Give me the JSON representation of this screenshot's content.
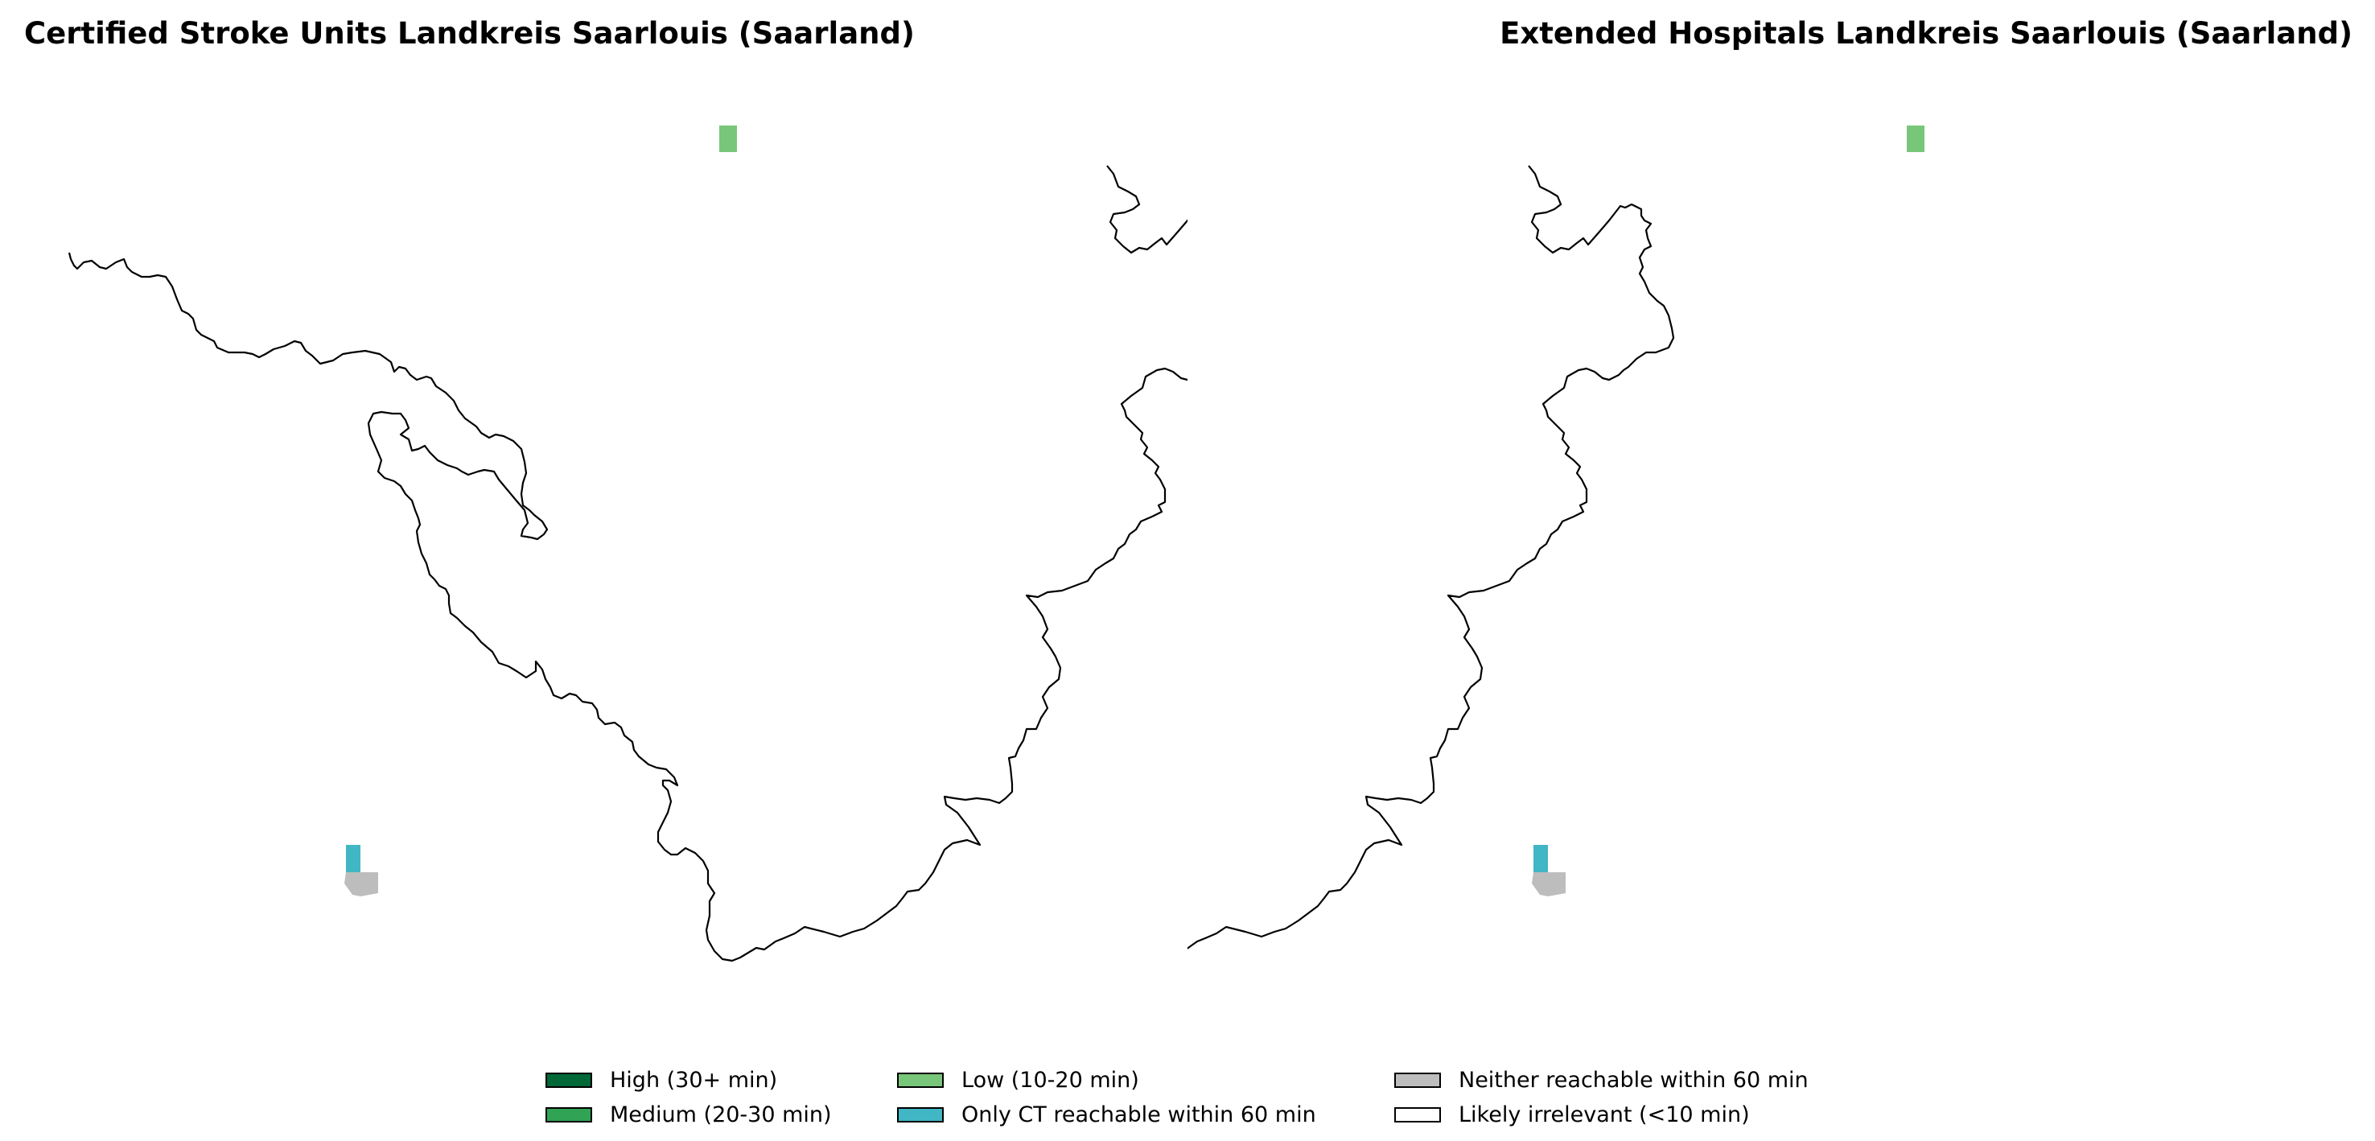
{
  "colors": {
    "high": "#006837",
    "medium": "#31a354",
    "low": "#78c679",
    "ct_only": "#41b6c4",
    "neither": "#bdbdbd",
    "irrelevant": "#ffffff",
    "boundary": "#000000"
  },
  "maps": [
    {
      "title": "Certified Stroke Units Landkreis Saarlouis (Saarland)",
      "filled_cells": [
        {
          "category": "low",
          "location": "northern tip"
        },
        {
          "category": "ct_only",
          "location": "southern tip"
        },
        {
          "category": "neither",
          "location": "southern tip"
        }
      ]
    },
    {
      "title": "Extended Hospitals Landkreis Saarlouis (Saarland)",
      "filled_cells": [
        {
          "category": "low",
          "location": "northern tip"
        },
        {
          "category": "ct_only",
          "location": "southern tip"
        },
        {
          "category": "neither",
          "location": "southern tip"
        }
      ]
    }
  ],
  "legend": {
    "items": [
      {
        "key": "high",
        "label": "High (30+ min)"
      },
      {
        "key": "medium",
        "label": "Medium (20-30 min)"
      },
      {
        "key": "low",
        "label": "Low (10-20 min)"
      },
      {
        "key": "ct_only",
        "label": "Only CT reachable within 60 min"
      },
      {
        "key": "neither",
        "label": "Neither reachable within 60 min"
      },
      {
        "key": "irrelevant",
        "label": "Likely irrelevant (<10 min)"
      }
    ]
  }
}
